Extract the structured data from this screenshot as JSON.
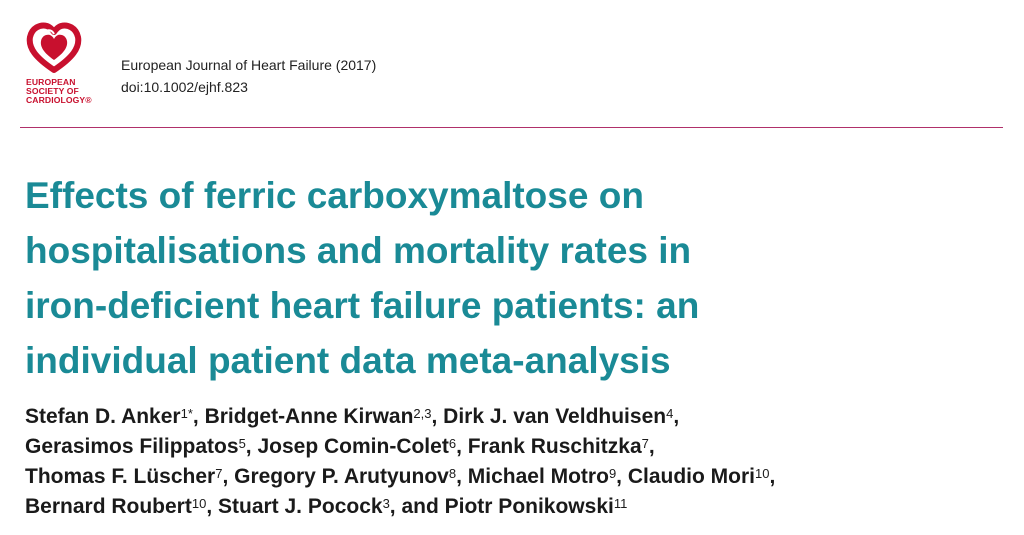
{
  "logo": {
    "lines": [
      "EUROPEAN",
      "SOCIETY OF",
      "CARDIOLOGY®"
    ],
    "color": "#c8102e"
  },
  "journal": {
    "name": "European Journal of Heart Failure (2017)",
    "doi": "doi:10.1002/ejhf.823"
  },
  "title": {
    "lines": [
      "Effects of ferric carboxymaltose on",
      "hospitalisations and mortality rates in",
      "iron-deficient heart failure patients: an",
      "individual patient data meta-analysis"
    ],
    "color": "#1a8a96"
  },
  "authors": {
    "lines": [
      [
        {
          "name": "Stefan D. Anker",
          "sup": "1*",
          "sep": ", "
        },
        {
          "name": "Bridget-Anne Kirwan",
          "sup": "2,3",
          "sep": ", "
        },
        {
          "name": "Dirk J. van Veldhuisen",
          "sup": "4",
          "sep": ","
        }
      ],
      [
        {
          "name": "Gerasimos Filippatos",
          "sup": "5",
          "sep": ", "
        },
        {
          "name": "Josep Comin-Colet",
          "sup": "6",
          "sep": ", "
        },
        {
          "name": "Frank Ruschitzka",
          "sup": "7",
          "sep": ","
        }
      ],
      [
        {
          "name": "Thomas F. Lüscher",
          "sup": "7",
          "sep": ", "
        },
        {
          "name": "Gregory P. Arutyunov",
          "sup": "8",
          "sep": ", "
        },
        {
          "name": "Michael Motro",
          "sup": "9",
          "sep": ", "
        },
        {
          "name": "Claudio Mori",
          "sup": "10",
          "sep": ","
        }
      ],
      [
        {
          "name": "Bernard Roubert",
          "sup": "10",
          "sep": ", "
        },
        {
          "name": "Stuart J. Pocock",
          "sup": "3",
          "sep": ", "
        },
        {
          "name": "and Piotr Ponikowski",
          "sup": "11",
          "sep": ""
        }
      ]
    ]
  }
}
